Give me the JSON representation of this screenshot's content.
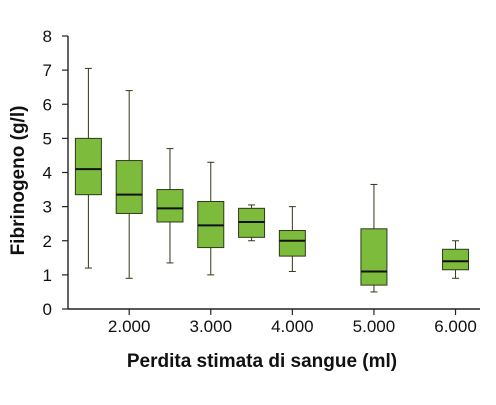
{
  "chart_data": {
    "type": "boxplot",
    "title": "",
    "xlabel": "Perdita stimata di sangue (ml)",
    "ylabel": "Fibrinogeno (g/l)",
    "ylim": [
      0,
      8
    ],
    "yticks": [
      "0",
      "1",
      "2",
      "3",
      "4",
      "5",
      "6",
      "7",
      "8"
    ],
    "xlim": [
      1250,
      6300
    ],
    "xticks": [
      {
        "value": 2000,
        "label": "2.000"
      },
      {
        "value": 3000,
        "label": "3.000"
      },
      {
        "value": 4000,
        "label": "4.000"
      },
      {
        "value": 5000,
        "label": "5.000"
      },
      {
        "value": 6000,
        "label": "6.000"
      }
    ],
    "grid": false,
    "box_fill": "#7dbb3c",
    "box_stroke": "#2e3a18",
    "boxes": [
      {
        "x": 1500,
        "min": 1.2,
        "q1": 3.35,
        "median": 4.1,
        "q3": 5.0,
        "max": 7.05
      },
      {
        "x": 2000,
        "min": 0.9,
        "q1": 2.8,
        "median": 3.35,
        "q3": 4.35,
        "max": 6.4
      },
      {
        "x": 2500,
        "min": 1.35,
        "q1": 2.55,
        "median": 2.95,
        "q3": 3.5,
        "max": 4.7
      },
      {
        "x": 3000,
        "min": 1.0,
        "q1": 1.8,
        "median": 2.45,
        "q3": 3.15,
        "max": 4.3
      },
      {
        "x": 3500,
        "min": 2.0,
        "q1": 2.1,
        "median": 2.55,
        "q3": 2.95,
        "max": 3.05
      },
      {
        "x": 4000,
        "min": 1.1,
        "q1": 1.55,
        "median": 2.0,
        "q3": 2.3,
        "max": 3.0
      },
      {
        "x": 5000,
        "min": 0.5,
        "q1": 0.7,
        "median": 1.1,
        "q3": 2.35,
        "max": 3.65
      },
      {
        "x": 6000,
        "min": 0.9,
        "q1": 1.15,
        "median": 1.4,
        "q3": 1.75,
        "max": 2.0
      }
    ]
  }
}
